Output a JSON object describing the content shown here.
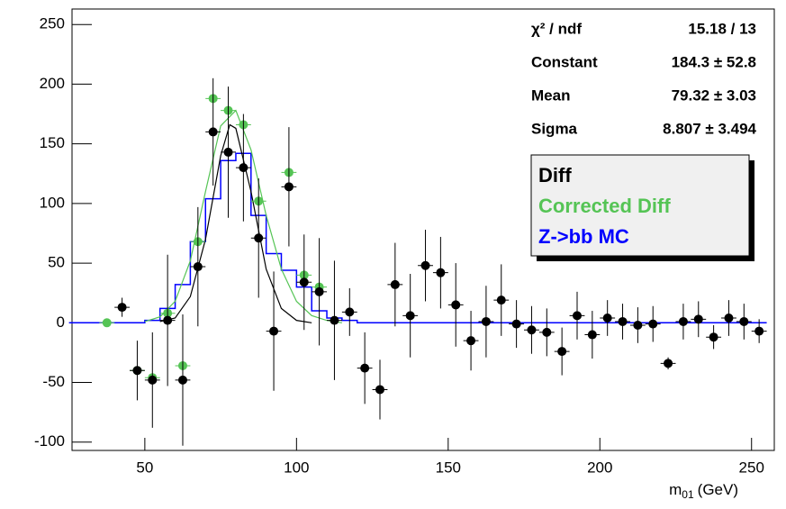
{
  "chart_data": {
    "type": "scatter",
    "x_label": "m",
    "x_label_sub": "01",
    "x_label_suffix": "(GeV)",
    "xlim": [
      26,
      257.5
    ],
    "ylim": [
      -107,
      263
    ],
    "xticks": [
      50,
      100,
      150,
      200,
      250
    ],
    "yticks": [
      -100,
      -50,
      0,
      50,
      100,
      150,
      200,
      250
    ],
    "series": [
      {
        "name": "Diff",
        "color": "#000000",
        "x": [
          42.5,
          47.5,
          52.5,
          57.5,
          62.5,
          67.5,
          72.5,
          77.5,
          82.5,
          87.5,
          92.5,
          97.5,
          102.5,
          107.5,
          112.5,
          117.5,
          122.5,
          127.5,
          132.5,
          137.5,
          142.5,
          147.5,
          152.5,
          157.5,
          162.5,
          167.5,
          172.5,
          177.5,
          182.5,
          187.5,
          192.5,
          197.5,
          202.5,
          207.5,
          212.5,
          217.5,
          222.5,
          227.5,
          232.5,
          237.5,
          242.5,
          247.5,
          252.5
        ],
        "values": [
          13,
          -40,
          -48,
          2,
          -48,
          47,
          160,
          143,
          130,
          71,
          -7,
          114,
          34,
          26,
          2,
          9,
          -38,
          -56,
          32,
          6,
          48,
          42,
          15,
          -15,
          1,
          19,
          -1,
          -6,
          -8,
          -24,
          6,
          -10,
          4,
          1,
          -2,
          -1,
          -34,
          1,
          3,
          -12,
          4,
          1,
          -7
        ],
        "errors": [
          8,
          25,
          40,
          55,
          55,
          50,
          45,
          55,
          45,
          50,
          50,
          50,
          40,
          45,
          50,
          20,
          30,
          25,
          35,
          35,
          30,
          30,
          35,
          25,
          30,
          30,
          20,
          20,
          20,
          20,
          20,
          20,
          15,
          15,
          15,
          15,
          5,
          15,
          15,
          10,
          15,
          15,
          10
        ]
      },
      {
        "name": "Corrected Diff",
        "color": "#55c455",
        "x": [
          37.5,
          47.5,
          52.5,
          57.5,
          62.5,
          67.5,
          72.5,
          77.5,
          82.5,
          87.5,
          97.5,
          102.5,
          107.5
        ],
        "values": [
          0,
          -40,
          -46,
          8,
          -36,
          68,
          188,
          178,
          166,
          102,
          126,
          40,
          30
        ]
      }
    ],
    "histogram": {
      "name": "Z->bb MC",
      "color": "#0000ff",
      "bins": [
        25,
        30,
        35,
        40,
        45,
        50,
        55,
        60,
        65,
        70,
        75,
        80,
        85,
        90,
        95,
        100,
        105,
        110,
        115,
        120,
        125,
        130,
        135,
        140,
        145,
        150,
        155,
        160,
        165,
        170,
        175,
        180,
        185,
        190,
        195,
        200,
        205,
        210,
        215,
        220,
        225,
        230,
        235,
        240,
        245,
        250,
        255
      ],
      "counts": [
        0,
        0,
        0,
        0,
        0,
        2,
        12,
        32,
        68,
        104,
        136,
        142,
        90,
        58,
        44,
        30,
        10,
        4,
        2,
        0,
        0,
        0,
        0,
        0,
        0,
        0,
        0,
        0,
        0,
        0,
        0,
        0,
        0,
        0,
        0,
        0,
        0,
        0,
        0,
        0,
        0,
        0,
        0,
        0,
        0,
        0
      ]
    },
    "curves": [
      {
        "color": "#000000",
        "x": [
          55,
          60,
          65,
          70,
          75,
          78,
          80,
          85,
          90,
          95,
          100,
          105
        ],
        "y": [
          1,
          4,
          22,
          70,
          140,
          166,
          163,
          110,
          45,
          12,
          2,
          0
        ]
      },
      {
        "color": "#55c455",
        "x": [
          50,
          55,
          60,
          65,
          70,
          75,
          80,
          85,
          90,
          95,
          100,
          105,
          110,
          115
        ],
        "y": [
          1,
          5,
          18,
          52,
          110,
          165,
          178,
          145,
          90,
          45,
          18,
          6,
          2,
          0
        ]
      }
    ],
    "stats": [
      {
        "label": "χ² / ndf",
        "value": "15.18 / 13"
      },
      {
        "label": "Constant",
        "value": "184.3 ± 52.8"
      },
      {
        "label": "Mean",
        "value": "79.32 ± 3.03"
      },
      {
        "label": "Sigma",
        "value": "8.807 ± 3.494"
      }
    ]
  }
}
